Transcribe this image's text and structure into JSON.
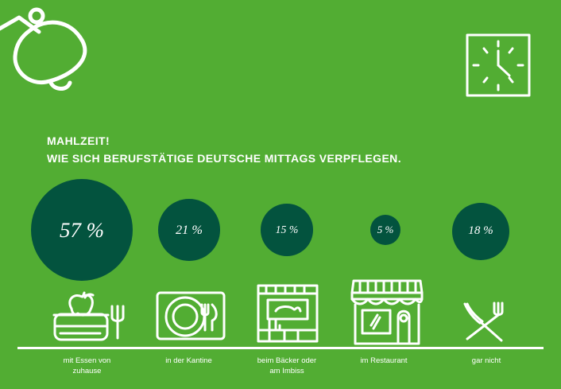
{
  "chart_data": {
    "type": "bubble",
    "title": "MAHLZEIT!",
    "subtitle": "WIE SICH BERUFSTÄTIGE DEUTSCHE MITTAGS VERPFLEGEN.",
    "categories": [
      "mit Essen von zuhause",
      "in der Kantine",
      "beim Bäcker oder am Imbiss",
      "im Restaurant",
      "gar nicht"
    ],
    "values": [
      57,
      21,
      15,
      5,
      18
    ],
    "value_labels": [
      "57 %",
      "21 %",
      "15 %",
      "5 %",
      "18 %"
    ],
    "unit": "%"
  },
  "items": [
    {
      "label_lines": [
        "mit Essen von",
        "zuhause"
      ],
      "icon": "lunchbox-apple-fork-icon"
    },
    {
      "label_lines": [
        "in der Kantine"
      ],
      "icon": "canteen-tray-icon"
    },
    {
      "label_lines": [
        "beim Bäcker oder",
        "am Imbiss"
      ],
      "icon": "bakery-stand-icon"
    },
    {
      "label_lines": [
        "im Restaurant"
      ],
      "icon": "restaurant-storefront-icon"
    },
    {
      "label_lines": [
        "gar nicht"
      ],
      "icon": "crossed-cutlery-icon"
    }
  ],
  "header": {
    "lamp_icon": "desk-lamp-icon",
    "clock_icon": "wall-clock-icon"
  },
  "colors": {
    "background": "#52ad33",
    "bubble": "#03533e",
    "text": "#ffffff"
  }
}
